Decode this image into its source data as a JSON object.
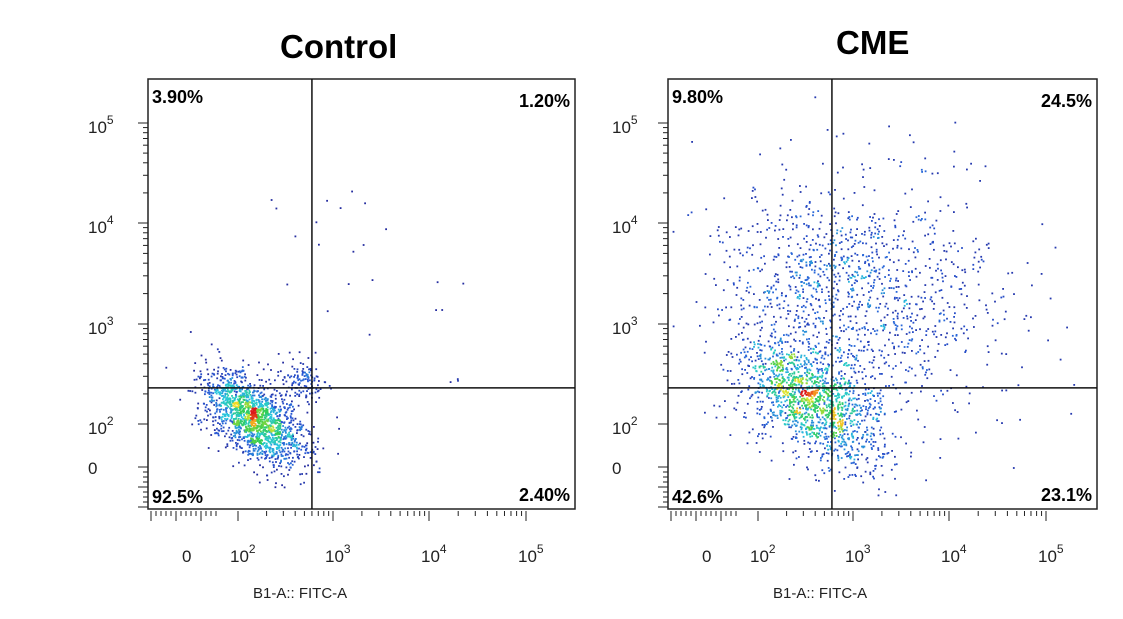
{
  "chart_data": [
    {
      "type": "scatter",
      "title": "Control",
      "xlabel": "B1-A:: FITC-A",
      "ylabel": "",
      "x_scale": "biexponential",
      "y_scale": "biexponential",
      "x_ticks": [
        "0",
        "10^2",
        "10^3",
        "10^4",
        "10^5"
      ],
      "y_ticks": [
        "0",
        "10^2",
        "10^3",
        "10^4",
        "10^5"
      ],
      "gate": {
        "x": 600,
        "y": 230
      },
      "quadrants": [
        {
          "position": "top-left",
          "value": "3.90%"
        },
        {
          "position": "top-right",
          "value": "1.20%"
        },
        {
          "position": "bottom-left",
          "value": "92.5%"
        },
        {
          "position": "bottom-right",
          "value": "2.40%"
        }
      ]
    },
    {
      "type": "scatter",
      "title": "CME",
      "xlabel": "B1-A:: FITC-A",
      "ylabel": "",
      "x_scale": "biexponential",
      "y_scale": "biexponential",
      "x_ticks": [
        "0",
        "10^2",
        "10^3",
        "10^4",
        "10^5"
      ],
      "y_ticks": [
        "0",
        "10^2",
        "10^3",
        "10^4",
        "10^5"
      ],
      "gate": {
        "x": 600,
        "y": 230
      },
      "quadrants": [
        {
          "position": "top-left",
          "value": "9.80%"
        },
        {
          "position": "top-right",
          "value": "24.5%"
        },
        {
          "position": "bottom-left",
          "value": "42.6%"
        },
        {
          "position": "bottom-right",
          "value": "23.1%"
        }
      ]
    }
  ]
}
